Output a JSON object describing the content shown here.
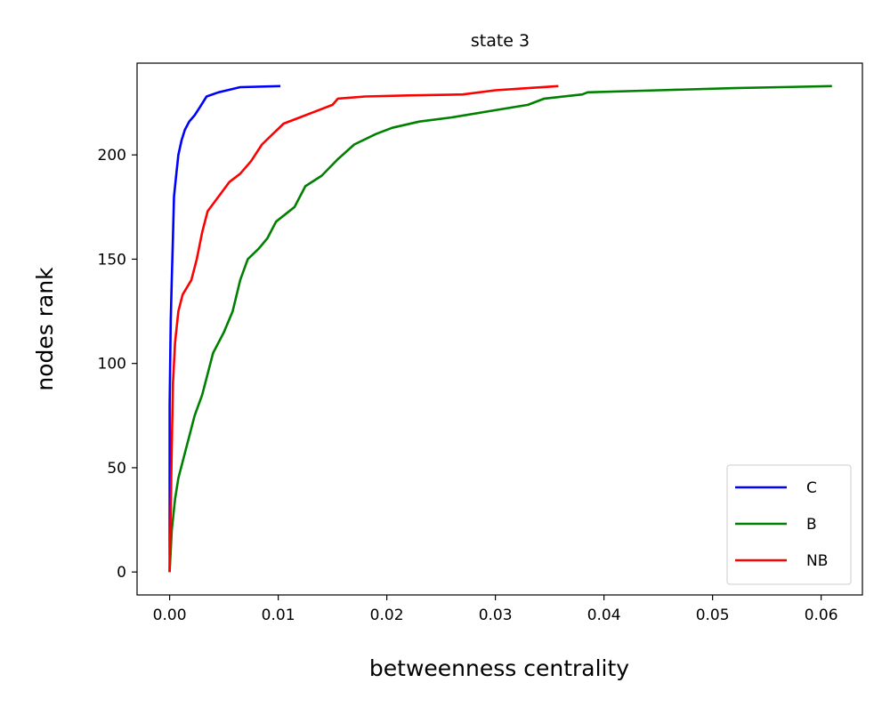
{
  "chart_data": {
    "type": "line",
    "title": "state 3",
    "xlabel": "betweenness centrality",
    "ylabel": "nodes rank",
    "xlim": [
      -0.003,
      0.0638
    ],
    "ylim": [
      -11,
      244
    ],
    "xticks": [
      0.0,
      0.01,
      0.02,
      0.03,
      0.04,
      0.05,
      0.06
    ],
    "xtick_labels": [
      "0.00",
      "0.01",
      "0.02",
      "0.03",
      "0.04",
      "0.05",
      "0.06"
    ],
    "yticks": [
      0,
      50,
      100,
      150,
      200
    ],
    "ytick_labels": [
      "0",
      "50",
      "100",
      "150",
      "200"
    ],
    "grid": false,
    "legend_position": "lower-right",
    "series": [
      {
        "name": "C",
        "color": "#0000ff",
        "points": [
          [
            0,
            0
          ],
          [
            0,
            40
          ],
          [
            0,
            80
          ],
          [
            0.0001,
            120
          ],
          [
            0.0002,
            140
          ],
          [
            0.0003,
            160
          ],
          [
            0.0004,
            180
          ],
          [
            0.0006,
            190
          ],
          [
            0.0008,
            200
          ],
          [
            0.0011,
            207
          ],
          [
            0.0014,
            212
          ],
          [
            0.0018,
            216
          ],
          [
            0.0023,
            219
          ],
          [
            0.0028,
            223
          ],
          [
            0.0034,
            228
          ],
          [
            0.0045,
            230
          ],
          [
            0.0065,
            232.5
          ],
          [
            0.0102,
            233
          ]
        ]
      },
      {
        "name": "B",
        "color": "#008000",
        "points": [
          [
            0,
            0
          ],
          [
            0.0002,
            20
          ],
          [
            0.0005,
            35
          ],
          [
            0.0008,
            45
          ],
          [
            0.0013,
            55
          ],
          [
            0.0018,
            65
          ],
          [
            0.0023,
            75
          ],
          [
            0.003,
            85
          ],
          [
            0.0035,
            95
          ],
          [
            0.004,
            105
          ],
          [
            0.005,
            115
          ],
          [
            0.0058,
            125
          ],
          [
            0.0065,
            140
          ],
          [
            0.0072,
            150
          ],
          [
            0.0082,
            155
          ],
          [
            0.009,
            160
          ],
          [
            0.0098,
            168
          ],
          [
            0.0115,
            175
          ],
          [
            0.0125,
            185
          ],
          [
            0.014,
            190
          ],
          [
            0.0155,
            198
          ],
          [
            0.017,
            205
          ],
          [
            0.019,
            210
          ],
          [
            0.0205,
            213
          ],
          [
            0.023,
            216
          ],
          [
            0.026,
            218
          ],
          [
            0.0295,
            221
          ],
          [
            0.033,
            224
          ],
          [
            0.0345,
            227
          ],
          [
            0.038,
            229
          ],
          [
            0.0385,
            230
          ],
          [
            0.045,
            231
          ],
          [
            0.052,
            232
          ],
          [
            0.061,
            233
          ]
        ]
      },
      {
        "name": "NB",
        "color": "#ff0000",
        "points": [
          [
            0,
            0
          ],
          [
            0.0001,
            30
          ],
          [
            0.0002,
            60
          ],
          [
            0.0003,
            90
          ],
          [
            0.0005,
            110
          ],
          [
            0.0008,
            125
          ],
          [
            0.0012,
            133
          ],
          [
            0.002,
            140
          ],
          [
            0.0025,
            150
          ],
          [
            0.003,
            163
          ],
          [
            0.0035,
            173
          ],
          [
            0.0045,
            180
          ],
          [
            0.0055,
            187
          ],
          [
            0.0065,
            191
          ],
          [
            0.0075,
            197
          ],
          [
            0.0085,
            205
          ],
          [
            0.0095,
            210
          ],
          [
            0.0105,
            215
          ],
          [
            0.012,
            218
          ],
          [
            0.0135,
            221
          ],
          [
            0.015,
            224
          ],
          [
            0.0155,
            227
          ],
          [
            0.018,
            228
          ],
          [
            0.022,
            228.5
          ],
          [
            0.027,
            229
          ],
          [
            0.03,
            231
          ],
          [
            0.033,
            232
          ],
          [
            0.0358,
            233
          ]
        ]
      }
    ]
  }
}
